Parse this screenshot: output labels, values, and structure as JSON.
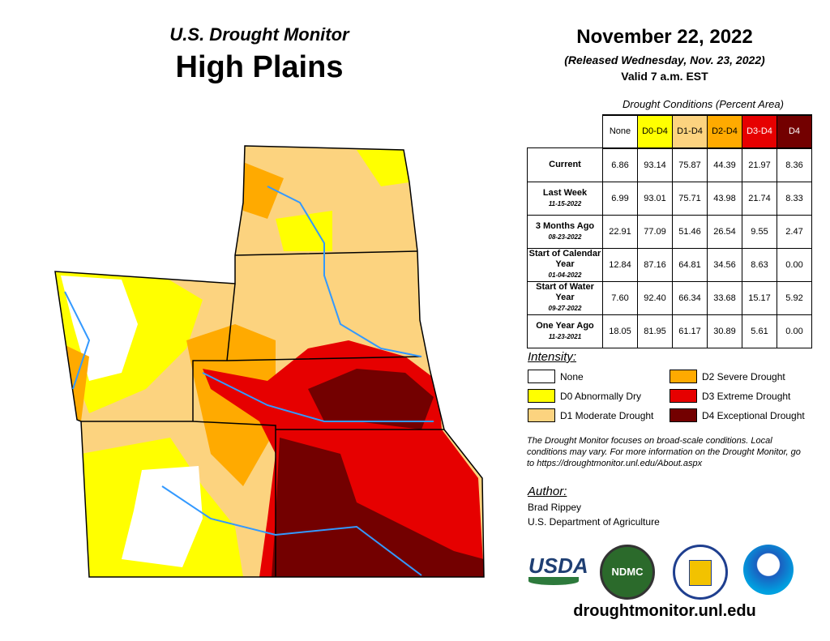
{
  "header": {
    "supertitle": "U.S. Drought Monitor",
    "title": "High Plains",
    "date": "November 22, 2022",
    "released": "(Released Wednesday, Nov. 23, 2022)",
    "valid": "Valid 7 a.m. EST"
  },
  "table": {
    "caption": "Drought Conditions (Percent Area)",
    "columns": [
      {
        "label": "None",
        "color": "#ffffff"
      },
      {
        "label": "D0-D4",
        "color": "#ffff00"
      },
      {
        "label": "D1-D4",
        "color": "#fcd37f"
      },
      {
        "label": "D2-D4",
        "color": "#ffaa00"
      },
      {
        "label": "D3-D4",
        "color": "#e60000"
      },
      {
        "label": "D4",
        "color": "#730000"
      }
    ],
    "rows": [
      {
        "label": "Current",
        "date": "",
        "values": [
          "6.86",
          "93.14",
          "75.87",
          "44.39",
          "21.97",
          "8.36"
        ]
      },
      {
        "label": "Last Week",
        "date": "11-15-2022",
        "values": [
          "6.99",
          "93.01",
          "75.71",
          "43.98",
          "21.74",
          "8.33"
        ]
      },
      {
        "label": "3 Months Ago",
        "date": "08-23-2022",
        "values": [
          "22.91",
          "77.09",
          "51.46",
          "26.54",
          "9.55",
          "2.47"
        ]
      },
      {
        "label": "Start of Calendar Year",
        "date": "01-04-2022",
        "values": [
          "12.84",
          "87.16",
          "64.81",
          "34.56",
          "8.63",
          "0.00"
        ]
      },
      {
        "label": "Start of Water Year",
        "date": "09-27-2022",
        "values": [
          "7.60",
          "92.40",
          "66.34",
          "33.68",
          "15.17",
          "5.92"
        ]
      },
      {
        "label": "One Year Ago",
        "date": "11-23-2021",
        "values": [
          "18.05",
          "81.95",
          "61.17",
          "30.89",
          "5.61",
          "0.00"
        ]
      }
    ]
  },
  "legend": {
    "title": "Intensity:",
    "items": [
      {
        "label": "None",
        "color": "#ffffff"
      },
      {
        "label": "D0 Abnormally Dry",
        "color": "#ffff00"
      },
      {
        "label": "D1 Moderate Drought",
        "color": "#fcd37f"
      },
      {
        "label": "D2 Severe Drought",
        "color": "#ffaa00"
      },
      {
        "label": "D3 Extreme Drought",
        "color": "#e60000"
      },
      {
        "label": "D4 Exceptional Drought",
        "color": "#730000"
      }
    ]
  },
  "note": "The Drought Monitor focuses on broad-scale conditions. Local conditions may vary. For more information on the Drought Monitor, go to https://droughtmonitor.unl.edu/About.aspx",
  "author": {
    "title": "Author:",
    "name": "Brad Rippey",
    "org": "U.S. Department of Agriculture"
  },
  "logos": [
    "USDA",
    "NDMC",
    "DOC",
    "NOAA"
  ],
  "url": "droughtmonitor.unl.edu"
}
